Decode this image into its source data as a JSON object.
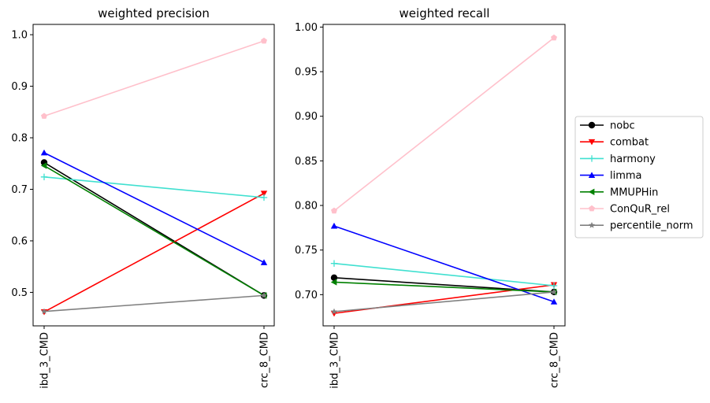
{
  "chart_data": [
    {
      "type": "line",
      "title": "weighted precision",
      "xlabel": "",
      "ylabel": "",
      "categories": [
        "ibd_3_CMD",
        "crc_8_CMD"
      ],
      "ylim": [
        0.435,
        1.02
      ],
      "yticks": [
        0.5,
        0.6,
        0.7,
        0.8,
        0.9,
        1.0
      ],
      "ytick_labels": [
        "0.5",
        "0.6",
        "0.7",
        "0.8",
        "0.9",
        "1.0"
      ],
      "series": [
        {
          "name": "nobc",
          "values": [
            0.752,
            0.494
          ]
        },
        {
          "name": "combat",
          "values": [
            0.462,
            0.692
          ]
        },
        {
          "name": "harmony",
          "values": [
            0.724,
            0.684
          ]
        },
        {
          "name": "limma",
          "values": [
            0.771,
            0.558
          ]
        },
        {
          "name": "MMUPHin",
          "values": [
            0.746,
            0.494
          ]
        },
        {
          "name": "ConQuR_rel",
          "values": [
            0.842,
            0.988
          ]
        },
        {
          "name": "percentile_norm",
          "values": [
            0.463,
            0.494
          ]
        }
      ]
    },
    {
      "type": "line",
      "title": "weighted recall",
      "xlabel": "",
      "ylabel": "",
      "categories": [
        "ibd_3_CMD",
        "crc_8_CMD"
      ],
      "ylim": [
        0.665,
        1.003
      ],
      "yticks": [
        0.7,
        0.75,
        0.8,
        0.85,
        0.9,
        0.95,
        1.0
      ],
      "ytick_labels": [
        "0.70",
        "0.75",
        "0.80",
        "0.85",
        "0.90",
        "0.95",
        "1.00"
      ],
      "series": [
        {
          "name": "nobc",
          "values": [
            0.719,
            0.703
          ]
        },
        {
          "name": "combat",
          "values": [
            0.679,
            0.711
          ]
        },
        {
          "name": "harmony",
          "values": [
            0.735,
            0.71
          ]
        },
        {
          "name": "limma",
          "values": [
            0.777,
            0.692
          ]
        },
        {
          "name": "MMUPHin",
          "values": [
            0.714,
            0.703
          ]
        },
        {
          "name": "ConQuR_rel",
          "values": [
            0.794,
            0.988
          ]
        },
        {
          "name": "percentile_norm",
          "values": [
            0.681,
            0.703
          ]
        }
      ]
    }
  ],
  "legend": {
    "placement": "right",
    "items": [
      {
        "label": "nobc",
        "color": "#000000",
        "marker": "circle"
      },
      {
        "label": "combat",
        "color": "#ff0000",
        "marker": "triangle-down"
      },
      {
        "label": "harmony",
        "color": "#40e0d0",
        "marker": "plus"
      },
      {
        "label": "limma",
        "color": "#0000ff",
        "marker": "triangle-up"
      },
      {
        "label": "MMUPHin",
        "color": "#008000",
        "marker": "triangle-left"
      },
      {
        "label": "ConQuR_rel",
        "color": "#ffc0cb",
        "marker": "pentagon"
      },
      {
        "label": "percentile_norm",
        "color": "#808080",
        "marker": "star"
      }
    ]
  }
}
